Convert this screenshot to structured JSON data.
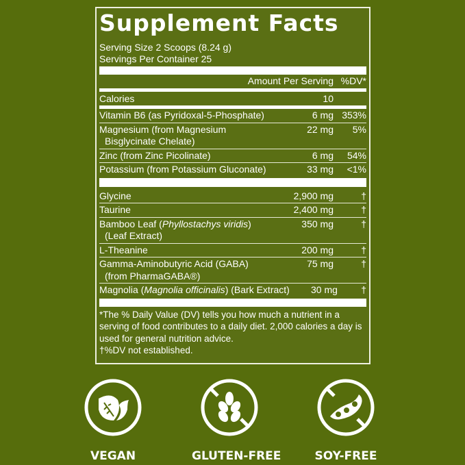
{
  "title": "Supplement Facts",
  "serving_size": "Serving Size 2 Scoops (8.24 g)",
  "servings_per_container": "Servings Per Container 25",
  "header": {
    "amount": "Amount Per Serving",
    "dv": "%DV*"
  },
  "calories": {
    "name": "Calories",
    "amount": "10"
  },
  "vitamins": [
    {
      "name": "Vitamin B6 (as Pyridoxal-5-Phosphate)",
      "amount": "6 mg",
      "dv": "353%"
    },
    {
      "name": "Magnesium (from Magnesium",
      "name2": "Bisglycinate Chelate)",
      "amount": "22 mg",
      "dv": "5%"
    },
    {
      "name": "Zinc (from Zinc Picolinate)",
      "amount": "6 mg",
      "dv": "54%"
    },
    {
      "name": "Potassium (from Potassium Gluconate)",
      "amount": "33 mg",
      "dv": "<1%"
    }
  ],
  "others": [
    {
      "name": "Glycine",
      "amount": "2,900 mg",
      "dv": "†"
    },
    {
      "name": "Taurine",
      "amount": "2,400 mg",
      "dv": "†"
    },
    {
      "name": "Bamboo Leaf",
      "italic": "Phyllostachys viridis",
      "name2": "(Leaf Extract)",
      "amount": "350 mg",
      "dv": "†"
    },
    {
      "name": "L-Theanine",
      "amount": "200 mg",
      "dv": "†"
    },
    {
      "name": "Gamma-Aminobutyric Acid (GABA)",
      "name2": "(from PharmaGABA®)",
      "amount": "75 mg",
      "dv": "†"
    },
    {
      "name": "Magnolia",
      "italic": "Magnolia officinalis",
      "suffix": "(Bark Extract)",
      "amount": "30 mg",
      "dv": "†"
    }
  ],
  "footnote": "*The % Daily Value (DV) tells you how much a nutrient in a serving of food contributes to a daily diet. 2,000 calories a day is used for general nutrition advice.",
  "footnote2": "†%DV not established.",
  "badges": [
    {
      "label": "VEGAN",
      "icon": "leaf-icon"
    },
    {
      "label": "GLUTEN-FREE",
      "icon": "wheat-crossed-icon"
    },
    {
      "label": "SOY-FREE",
      "icon": "soybean-crossed-icon"
    }
  ],
  "colors": {
    "background": "#566d0c",
    "text": "#ffffff"
  }
}
